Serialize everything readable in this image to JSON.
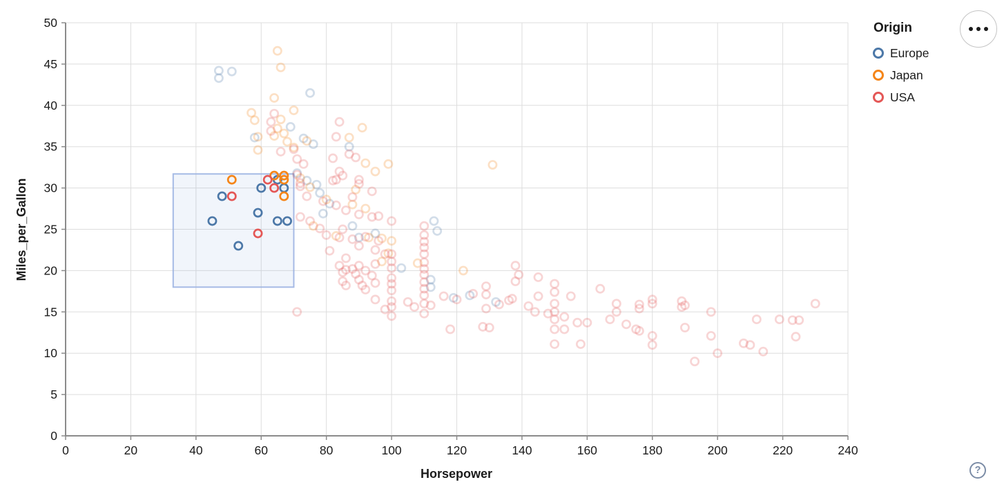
{
  "legend": {
    "title": "Origin",
    "items": [
      {
        "label": "Europe",
        "color": "#4c78a8"
      },
      {
        "label": "Japan",
        "color": "#f58518"
      },
      {
        "label": "USA",
        "color": "#e45756"
      }
    ]
  },
  "toolbar": {
    "menu_icon": "ellipsis-menu",
    "help_icon": "question-mark",
    "help_glyph": "?"
  },
  "chart_data": {
    "type": "scatter",
    "title": "",
    "xlabel": "Horsepower",
    "ylabel": "Miles_per_Gallon",
    "xlim": [
      0,
      240
    ],
    "ylim": [
      0,
      50
    ],
    "x_ticks": [
      0,
      20,
      40,
      60,
      80,
      100,
      120,
      140,
      160,
      180,
      200,
      220,
      240
    ],
    "y_ticks": [
      0,
      5,
      10,
      15,
      20,
      25,
      30,
      35,
      40,
      45,
      50
    ],
    "grid": true,
    "legend_position": "top-right",
    "color_field": "Origin",
    "colors": {
      "Europe": "#4c78a8",
      "Japan": "#f58518",
      "USA": "#e45756"
    },
    "brush": {
      "x": [
        33,
        70
      ],
      "y": [
        18,
        31.7
      ]
    },
    "unselected_opacity": 0.25,
    "series": [
      {
        "name": "Europe",
        "points": [
          [
            48,
            29
          ],
          [
            45,
            26
          ],
          [
            59,
            27
          ],
          [
            53,
            23
          ],
          [
            60,
            30
          ],
          [
            65,
            31
          ],
          [
            67,
            30
          ],
          [
            65,
            26
          ],
          [
            68,
            26
          ],
          [
            47,
            44.2
          ],
          [
            51,
            44.1
          ],
          [
            47,
            43.3
          ],
          [
            75,
            41.5
          ],
          [
            69,
            37.4
          ],
          [
            58,
            36.1
          ],
          [
            73,
            36
          ],
          [
            76,
            35.3
          ],
          [
            87,
            35
          ],
          [
            71,
            31.8
          ],
          [
            74,
            30.9
          ],
          [
            77,
            30.4
          ],
          [
            78,
            29.4
          ],
          [
            81,
            28.1
          ],
          [
            79,
            26.9
          ],
          [
            88,
            25.4
          ],
          [
            90,
            24
          ],
          [
            95,
            24.5
          ],
          [
            113,
            26
          ],
          [
            114,
            24.8
          ],
          [
            103,
            20.3
          ],
          [
            112,
            18.9
          ],
          [
            112,
            18
          ],
          [
            119,
            16.7
          ],
          [
            124,
            17
          ],
          [
            132,
            16.2
          ]
        ]
      },
      {
        "name": "Japan",
        "points": [
          [
            51,
            31
          ],
          [
            64,
            31.5
          ],
          [
            67,
            31.5
          ],
          [
            67,
            31
          ],
          [
            67,
            29
          ],
          [
            65,
            46.6
          ],
          [
            66,
            44.6
          ],
          [
            64,
            40.9
          ],
          [
            70,
            39.4
          ],
          [
            57,
            39.1
          ],
          [
            58,
            38.2
          ],
          [
            66,
            38.3
          ],
          [
            65,
            37.2
          ],
          [
            59,
            36.2
          ],
          [
            64,
            36.3
          ],
          [
            67,
            36.6
          ],
          [
            68,
            35.6
          ],
          [
            74,
            35.7
          ],
          [
            70,
            34.9
          ],
          [
            59,
            34.6
          ],
          [
            87,
            36.1
          ],
          [
            91,
            37.3
          ],
          [
            99,
            32.9
          ],
          [
            95,
            32
          ],
          [
            92,
            33
          ],
          [
            89,
            29.8
          ],
          [
            131,
            32.8
          ],
          [
            72,
            31.2
          ],
          [
            75,
            30.1
          ],
          [
            80,
            28.6
          ],
          [
            88,
            28
          ],
          [
            92,
            27.5
          ],
          [
            76,
            25.4
          ],
          [
            83,
            24.2
          ],
          [
            93,
            24
          ],
          [
            97,
            23.9
          ],
          [
            100,
            23.6
          ],
          [
            99,
            22.1
          ],
          [
            122,
            20
          ],
          [
            97,
            21.1
          ],
          [
            108,
            20.9
          ]
        ]
      },
      {
        "name": "USA",
        "points": [
          [
            51,
            29
          ],
          [
            62,
            31
          ],
          [
            64,
            30
          ],
          [
            59,
            24.5
          ],
          [
            64,
            39
          ],
          [
            84,
            38
          ],
          [
            63,
            38
          ],
          [
            63,
            36.9
          ],
          [
            83,
            36.2
          ],
          [
            87,
            34.1
          ],
          [
            89,
            33.7
          ],
          [
            82,
            33.6
          ],
          [
            70,
            34.7
          ],
          [
            66,
            34.4
          ],
          [
            71,
            33.5
          ],
          [
            73,
            32.9
          ],
          [
            84,
            32
          ],
          [
            85,
            31.5
          ],
          [
            83,
            31
          ],
          [
            82,
            30.9
          ],
          [
            71,
            31.6
          ],
          [
            72,
            30.6
          ],
          [
            90,
            31
          ],
          [
            90,
            30.5
          ],
          [
            94,
            29.6
          ],
          [
            72,
            30.2
          ],
          [
            74,
            29
          ],
          [
            79,
            28.4
          ],
          [
            83,
            27.9
          ],
          [
            86,
            27.3
          ],
          [
            90,
            26.8
          ],
          [
            94,
            26.5
          ],
          [
            96,
            26.6
          ],
          [
            100,
            26
          ],
          [
            88,
            28.9
          ],
          [
            75,
            26
          ],
          [
            78,
            25.1
          ],
          [
            80,
            24.3
          ],
          [
            84,
            24
          ],
          [
            88,
            23.8
          ],
          [
            90,
            23
          ],
          [
            95,
            22.5
          ],
          [
            98,
            22
          ],
          [
            85,
            25
          ],
          [
            92,
            24.1
          ],
          [
            96,
            23.6
          ],
          [
            81,
            22.4
          ],
          [
            86,
            21.5
          ],
          [
            72,
            26.5
          ],
          [
            110,
            25.4
          ],
          [
            110,
            24.3
          ],
          [
            110,
            23.5
          ],
          [
            110,
            22.8
          ],
          [
            110,
            22
          ],
          [
            110,
            21
          ],
          [
            110,
            20.2
          ],
          [
            110,
            19.5
          ],
          [
            110,
            18.6
          ],
          [
            110,
            17.8
          ],
          [
            110,
            17
          ],
          [
            110,
            16
          ],
          [
            110,
            14.8
          ],
          [
            100,
            22
          ],
          [
            100,
            21.1
          ],
          [
            100,
            20.3
          ],
          [
            100,
            19.1
          ],
          [
            100,
            18.4
          ],
          [
            100,
            17.6
          ],
          [
            100,
            16.3
          ],
          [
            100,
            15.6
          ],
          [
            100,
            14.5
          ],
          [
            88,
            20.2
          ],
          [
            89,
            19.6
          ],
          [
            90,
            20.6
          ],
          [
            90,
            18.9
          ],
          [
            91,
            18.2
          ],
          [
            92,
            20
          ],
          [
            92,
            17.7
          ],
          [
            94,
            19.4
          ],
          [
            95,
            20.8
          ],
          [
            95,
            18.5
          ],
          [
            84,
            20.6
          ],
          [
            85,
            19.8
          ],
          [
            85,
            18.7
          ],
          [
            86,
            20.1
          ],
          [
            86,
            18.2
          ],
          [
            95,
            16.5
          ],
          [
            98,
            15.3
          ],
          [
            105,
            16.2
          ],
          [
            107,
            15.6
          ],
          [
            112,
            15.8
          ],
          [
            116,
            16.9
          ],
          [
            120,
            16.5
          ],
          [
            125,
            17.2
          ],
          [
            129,
            18.1
          ],
          [
            129,
            17.1
          ],
          [
            129,
            15.4
          ],
          [
            130,
            13.1
          ],
          [
            118,
            12.9
          ],
          [
            128,
            13.2
          ],
          [
            71,
            15
          ],
          [
            133,
            15.9
          ],
          [
            138,
            20.6
          ],
          [
            139,
            19.5
          ],
          [
            145,
            19.2
          ],
          [
            138,
            18.7
          ],
          [
            137,
            16.6
          ],
          [
            136,
            16.4
          ],
          [
            142,
            15.7
          ],
          [
            144,
            15
          ],
          [
            145,
            16.9
          ],
          [
            148,
            14.8
          ],
          [
            150,
            18.4
          ],
          [
            150,
            17.4
          ],
          [
            150,
            16
          ],
          [
            150,
            15
          ],
          [
            150,
            14.1
          ],
          [
            150,
            12.9
          ],
          [
            150,
            11.1
          ],
          [
            155,
            16.9
          ],
          [
            153,
            14.4
          ],
          [
            157,
            13.7
          ],
          [
            160,
            13.7
          ],
          [
            153,
            12.9
          ],
          [
            158,
            11.1
          ],
          [
            164,
            17.8
          ],
          [
            169,
            16
          ],
          [
            169,
            15
          ],
          [
            167,
            14.1
          ],
          [
            172,
            13.5
          ],
          [
            176,
            15.9
          ],
          [
            176,
            15.4
          ],
          [
            175,
            12.9
          ],
          [
            176,
            12.7
          ],
          [
            180,
            16.5
          ],
          [
            180,
            16
          ],
          [
            180,
            12.1
          ],
          [
            180,
            11
          ],
          [
            189,
            16.3
          ],
          [
            189,
            15.6
          ],
          [
            190,
            13.1
          ],
          [
            190,
            15.8
          ],
          [
            198,
            15
          ],
          [
            198,
            12.1
          ],
          [
            200,
            10
          ],
          [
            193,
            9
          ],
          [
            208,
            11.2
          ],
          [
            210,
            11
          ],
          [
            212,
            14.1
          ],
          [
            214,
            10.2
          ],
          [
            219,
            14.1
          ],
          [
            223,
            14
          ],
          [
            225,
            14
          ],
          [
            224,
            12
          ],
          [
            230,
            16
          ]
        ]
      }
    ]
  }
}
